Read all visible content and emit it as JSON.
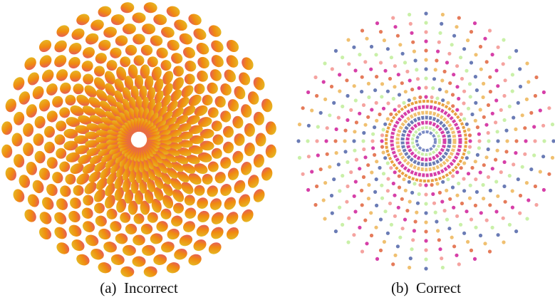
{
  "figure": {
    "panels": [
      {
        "caption": "(a)  Incorrect"
      },
      {
        "caption": "(b)  Correct"
      }
    ]
  }
}
